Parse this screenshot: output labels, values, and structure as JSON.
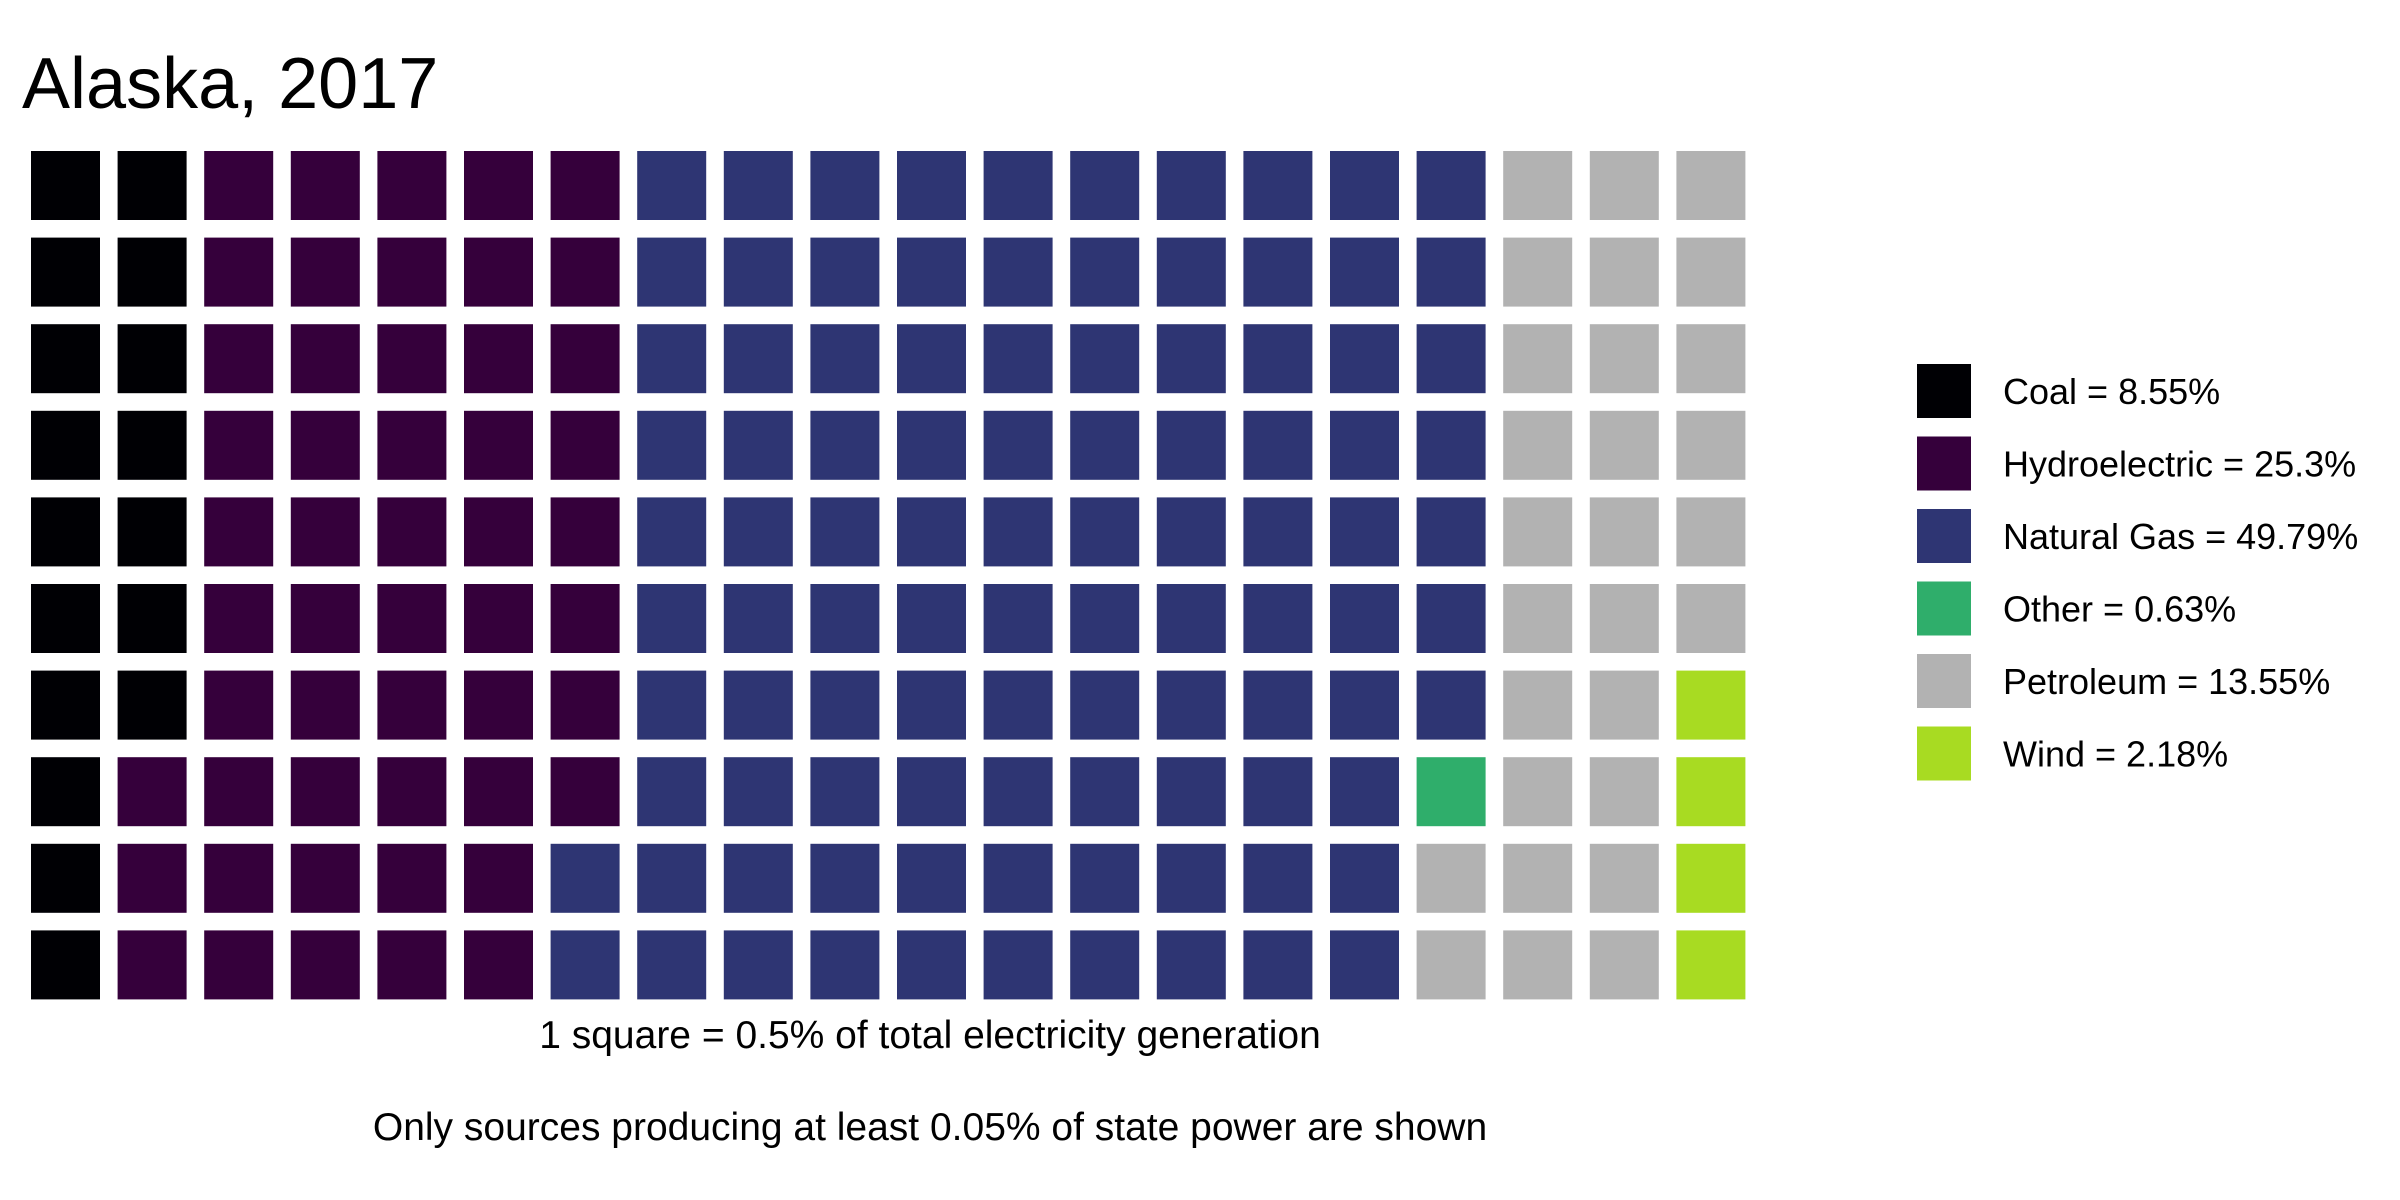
{
  "chart_data": {
    "type": "waffle",
    "title": "Alaska, 2017",
    "grid": {
      "columns": 20,
      "rows": 10,
      "square_value_percent": 0.5,
      "fill_order": "column-major, top-to-bottom"
    },
    "categories": [
      {
        "name": "Coal",
        "percent": 8.55,
        "squares": 17,
        "color": "#000004",
        "legend_label": "Coal = 8.55%"
      },
      {
        "name": "Hydroelectric",
        "percent": 25.3,
        "squares": 51,
        "color": "#35003b",
        "legend_label": "Hydroelectric = 25.3%"
      },
      {
        "name": "Natural Gas",
        "percent": 49.79,
        "squares": 99,
        "color": "#2e3573",
        "legend_label": "Natural Gas = 49.79%"
      },
      {
        "name": "Other",
        "percent": 0.63,
        "squares": 1,
        "color": "#2fae6b",
        "legend_label": "Other = 0.63%"
      },
      {
        "name": "Petroleum",
        "percent": 13.55,
        "squares": 28,
        "color": "#b2b2b2",
        "legend_label": "Petroleum = 13.55%"
      },
      {
        "name": "Wind",
        "percent": 2.18,
        "squares": 4,
        "color": "#a8db22",
        "legend_label": "Wind = 2.18%"
      }
    ],
    "xlabel": "1 square = 0.5% of total electricity generation",
    "caption": "Only sources producing at least 0.05% of state power are shown",
    "legend_position": "right"
  }
}
